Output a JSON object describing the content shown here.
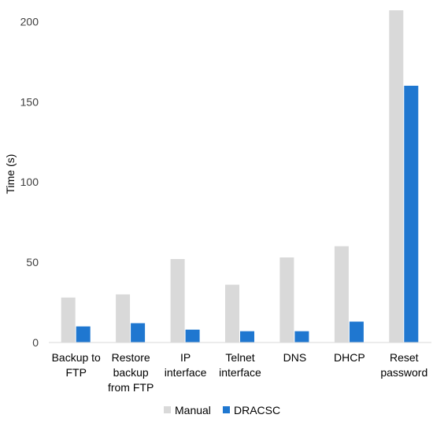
{
  "chart_data": {
    "type": "bar",
    "categories": [
      [
        "Backup to",
        "FTP"
      ],
      [
        "Restore",
        "backup",
        "from FTP"
      ],
      [
        "IP",
        "interface"
      ],
      [
        "Telnet",
        "interface"
      ],
      [
        "DNS"
      ],
      [
        "DHCP"
      ],
      [
        "Reset",
        "password"
      ]
    ],
    "series": [
      {
        "name": "Manual",
        "color": "#d9d9d9",
        "values": [
          28,
          30,
          52,
          36,
          53,
          60,
          207
        ]
      },
      {
        "name": "DRACSC",
        "color": "#1f77d0",
        "values": [
          10,
          12,
          8,
          7,
          7,
          13,
          160
        ]
      }
    ],
    "title": "",
    "xlabel": "",
    "ylabel": "Time (s)",
    "ylim": [
      0,
      210
    ],
    "yticks": [
      0,
      50,
      100,
      150,
      200
    ],
    "grid": false,
    "legend": "bottom"
  }
}
